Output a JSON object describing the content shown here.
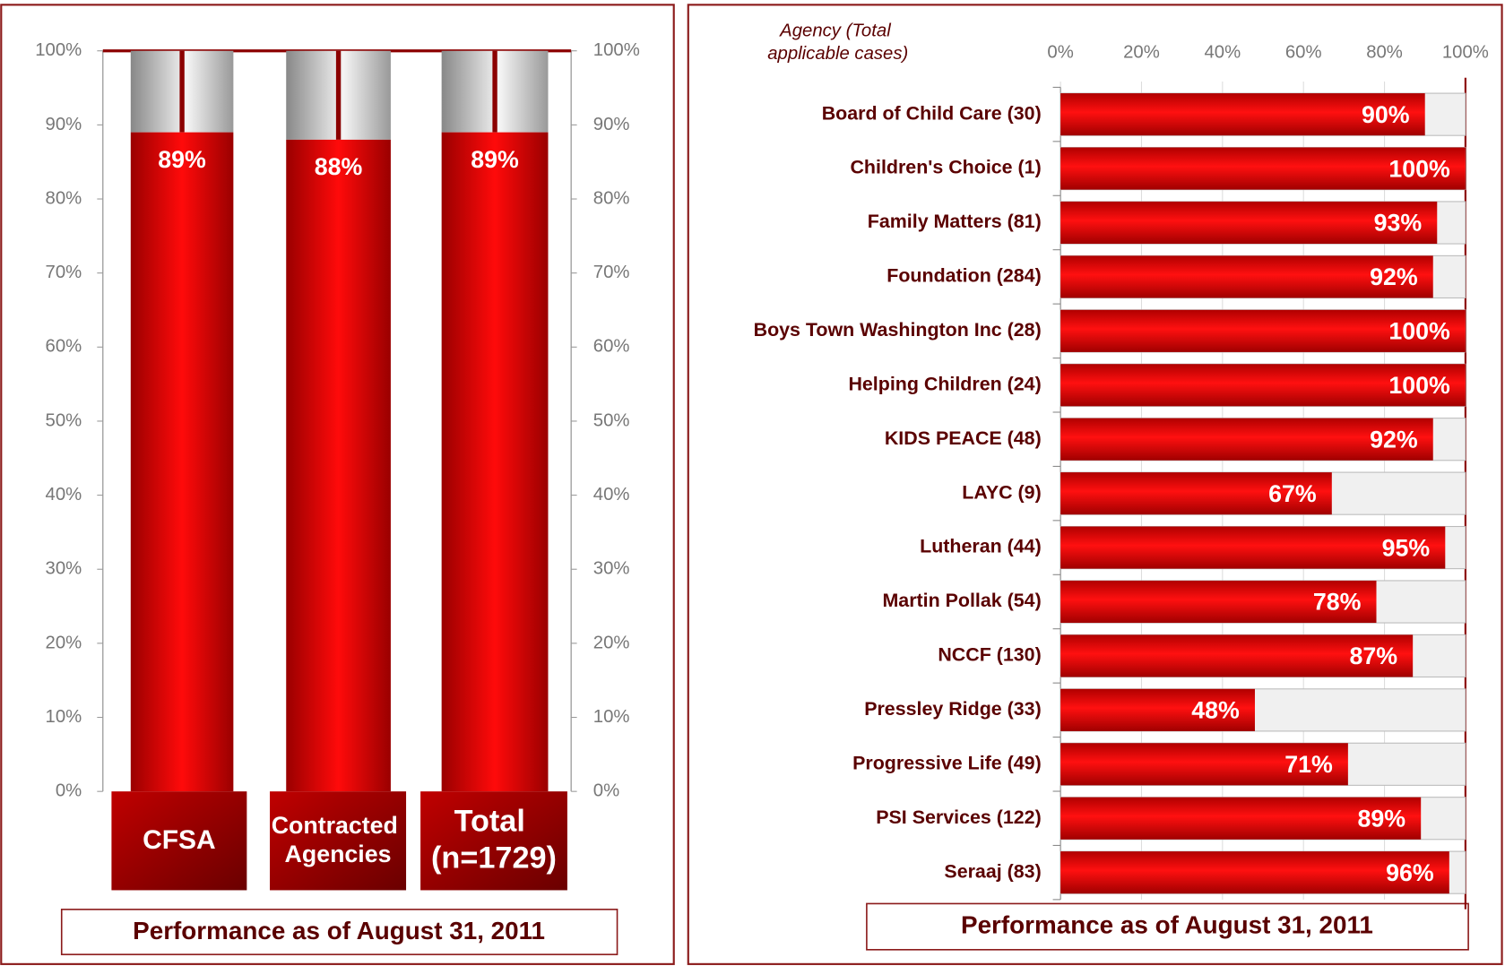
{
  "chart_data": [
    {
      "type": "bar",
      "categories": [
        "CFSA",
        "Contracted Agencies",
        "Total (n=1729)"
      ],
      "values": [
        89,
        88,
        89
      ],
      "value_labels": [
        "89%",
        "88%",
        "89%"
      ],
      "color": "#e00000",
      "ylim": [
        0,
        100
      ],
      "yticks": [
        {
          "value": 0,
          "label": "0%"
        },
        {
          "value": 10,
          "label": "10%"
        },
        {
          "value": 20,
          "label": "20%"
        },
        {
          "value": 30,
          "label": "30%"
        },
        {
          "value": 40,
          "label": "40%"
        },
        {
          "value": 50,
          "label": "50%"
        },
        {
          "value": 60,
          "label": "60%"
        },
        {
          "value": 70,
          "label": "70%"
        },
        {
          "value": 80,
          "label": "80%"
        },
        {
          "value": 90,
          "label": "90%"
        },
        {
          "value": 100,
          "label": "100%"
        }
      ],
      "y2lim": [
        0,
        100
      ],
      "y2ticks": [
        {
          "value": 0,
          "label": "0%"
        },
        {
          "value": 10,
          "label": "10%"
        },
        {
          "value": 20,
          "label": "20%"
        },
        {
          "value": 30,
          "label": "30%"
        },
        {
          "value": 40,
          "label": "40%"
        },
        {
          "value": 50,
          "label": "50%"
        },
        {
          "value": 60,
          "label": "60%"
        },
        {
          "value": 70,
          "label": "70%"
        },
        {
          "value": 80,
          "label": "80%"
        },
        {
          "value": 90,
          "label": "90%"
        },
        {
          "value": 100,
          "label": "100%"
        }
      ],
      "footer": "Performance as of August 31, 2011"
    },
    {
      "type": "barh",
      "y_label": "Agency (Total applicable cases)",
      "categories": [
        "Board of Child Care (30)",
        "Children's Choice (1)",
        "Family Matters (81)",
        "Foundation (284)",
        "Boys Town Washington Inc (28)",
        "Helping Children (24)",
        "KIDS PEACE (48)",
        "LAYC (9)",
        "Lutheran (44)",
        "Martin Pollak (54)",
        "NCCF (130)",
        "Pressley Ridge (33)",
        "Progressive Life (49)",
        "PSI Services (122)",
        "Seraaj (83)"
      ],
      "values": [
        90,
        100,
        93,
        92,
        100,
        100,
        92,
        67,
        95,
        78,
        87,
        48,
        71,
        89,
        96
      ],
      "value_labels": [
        "90%",
        "100%",
        "93%",
        "92%",
        "100%",
        "100%",
        "92%",
        "67%",
        "95%",
        "78%",
        "87%",
        "48%",
        "71%",
        "89%",
        "96%"
      ],
      "color": "#e00000",
      "xlim": [
        0,
        100
      ],
      "xticks": [
        {
          "value": 0,
          "label": "0%"
        },
        {
          "value": 20,
          "label": "20%"
        },
        {
          "value": 40,
          "label": "40%"
        },
        {
          "value": 60,
          "label": "60%"
        },
        {
          "value": 80,
          "label": "80%"
        },
        {
          "value": 100,
          "label": "100%"
        }
      ],
      "footer": "Performance as of August 31, 2011"
    }
  ]
}
